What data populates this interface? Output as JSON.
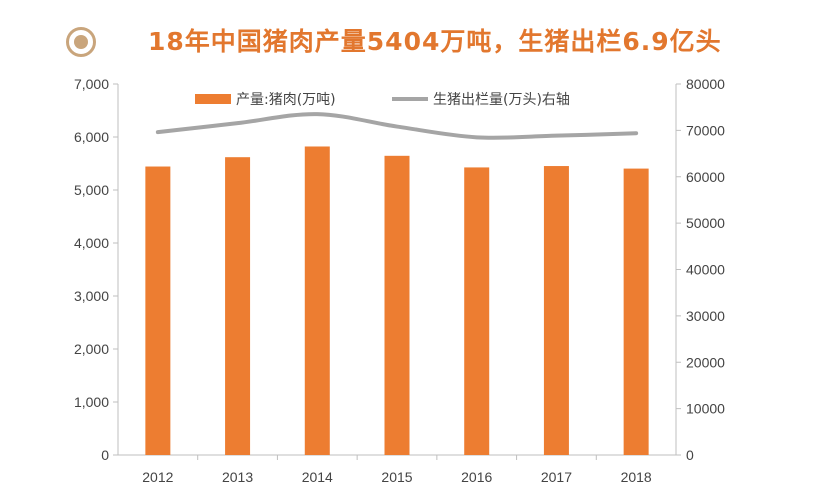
{
  "title": "18年中国猪肉产量5404万吨，生猪出栏6.9亿头",
  "title_icon": "target-circle-icon",
  "colors": {
    "title": "#e2772e",
    "bar": "#ed7d31",
    "line": "#a5a5a5",
    "icon": "#c9a57c"
  },
  "chart_data": {
    "type": "bar",
    "categories": [
      "2012",
      "2013",
      "2014",
      "2015",
      "2016",
      "2017",
      "2018"
    ],
    "series": [
      {
        "name": "产量:猪肉(万吨)",
        "type": "bar",
        "axis": "left",
        "values": [
          5443,
          5619,
          5821,
          5645,
          5426,
          5452,
          5404
        ]
      },
      {
        "name": "生猪出栏量(万头)右轴",
        "type": "line",
        "axis": "right",
        "smooth": true,
        "values": [
          69628,
          71557,
          73510,
          70825,
          68502,
          68861,
          69382
        ]
      }
    ],
    "y_left": {
      "ylim": [
        0,
        7000
      ],
      "ticks": [
        "0",
        "1,000",
        "2,000",
        "3,000",
        "4,000",
        "5,000",
        "6,000",
        "7,000"
      ]
    },
    "y_right": {
      "ylim": [
        0,
        80000
      ],
      "ticks": [
        "0",
        "10000",
        "20000",
        "30000",
        "40000",
        "50000",
        "60000",
        "70000",
        "80000"
      ]
    },
    "legend_position": "top",
    "grid": false
  }
}
